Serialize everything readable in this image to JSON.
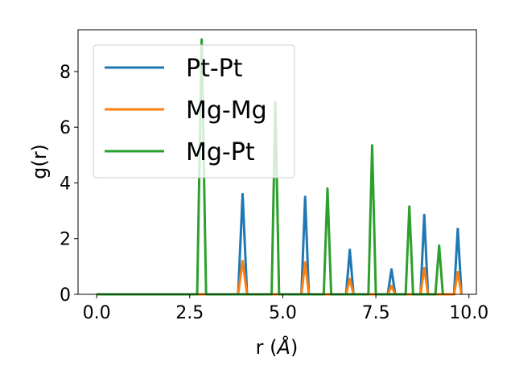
{
  "chart_data": {
    "type": "line",
    "xlabel": "r (",
    "xlabel_unit": "Å",
    "xlabel_close": ")",
    "ylabel": "g(r)",
    "xlim": [
      -0.5,
      10.2
    ],
    "ylim": [
      0,
      9.5
    ],
    "x_ticks": [
      0.0,
      2.5,
      5.0,
      7.5,
      10.0
    ],
    "x_tick_labels": [
      "0.0",
      "2.5",
      "5.0",
      "7.5",
      "10.0"
    ],
    "y_ticks": [
      0,
      2,
      4,
      6,
      8
    ],
    "y_tick_labels": [
      "0",
      "2",
      "4",
      "6",
      "8"
    ],
    "grid": false,
    "legend_position": "top-left",
    "series": [
      {
        "name": "Pt-Pt",
        "color": "#1f77b4",
        "points": [
          [
            0,
            0
          ],
          [
            3.8,
            0
          ],
          [
            3.92,
            3.6
          ],
          [
            4.04,
            0
          ],
          [
            5.5,
            0
          ],
          [
            5.6,
            3.5
          ],
          [
            5.7,
            0
          ],
          [
            6.7,
            0
          ],
          [
            6.8,
            1.6
          ],
          [
            6.9,
            0
          ],
          [
            7.82,
            0
          ],
          [
            7.92,
            0.9
          ],
          [
            8.02,
            0
          ],
          [
            8.7,
            0
          ],
          [
            8.8,
            2.85
          ],
          [
            8.9,
            0
          ],
          [
            9.6,
            0
          ],
          [
            9.7,
            2.35
          ],
          [
            9.8,
            0
          ]
        ]
      },
      {
        "name": "Mg-Mg",
        "color": "#ff7f0e",
        "points": [
          [
            0,
            0
          ],
          [
            3.8,
            0
          ],
          [
            3.92,
            1.2
          ],
          [
            4.04,
            0
          ],
          [
            5.5,
            0
          ],
          [
            5.6,
            1.15
          ],
          [
            5.7,
            0
          ],
          [
            6.7,
            0
          ],
          [
            6.8,
            0.55
          ],
          [
            6.9,
            0
          ],
          [
            7.82,
            0
          ],
          [
            7.92,
            0.3
          ],
          [
            8.02,
            0
          ],
          [
            8.7,
            0
          ],
          [
            8.8,
            0.95
          ],
          [
            8.9,
            0
          ],
          [
            9.6,
            0
          ],
          [
            9.7,
            0.8
          ],
          [
            9.8,
            0
          ]
        ]
      },
      {
        "name": "Mg-Pt",
        "color": "#2ca02c",
        "points": [
          [
            0,
            0
          ],
          [
            2.7,
            0
          ],
          [
            2.82,
            9.15
          ],
          [
            2.94,
            0
          ],
          [
            4.7,
            0
          ],
          [
            4.8,
            6.9
          ],
          [
            4.9,
            0
          ],
          [
            6.1,
            0
          ],
          [
            6.2,
            3.8
          ],
          [
            6.3,
            0
          ],
          [
            7.3,
            0
          ],
          [
            7.4,
            5.35
          ],
          [
            7.5,
            0
          ],
          [
            8.3,
            0
          ],
          [
            8.4,
            3.15
          ],
          [
            8.5,
            0
          ],
          [
            9.1,
            0
          ],
          [
            9.2,
            1.75
          ],
          [
            9.3,
            0
          ]
        ]
      }
    ]
  }
}
